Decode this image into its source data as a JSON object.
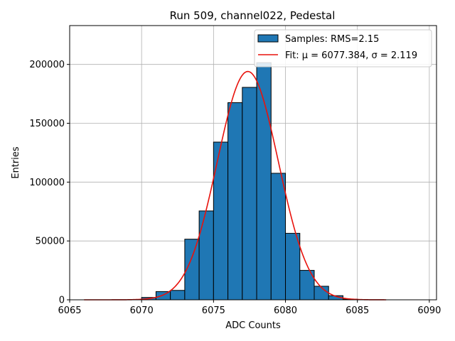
{
  "chart_data": {
    "type": "bar",
    "title": "Run 509, channel022, Pedestal",
    "xlabel": "ADC Counts",
    "ylabel": "Entries",
    "xlim": [
      6065,
      6090.5
    ],
    "ylim": [
      0,
      233000
    ],
    "grid": true,
    "legend_position": "top-right",
    "x_ticks": [
      6065,
      6070,
      6075,
      6080,
      6085,
      6090
    ],
    "y_ticks": [
      0,
      50000,
      100000,
      150000,
      200000
    ],
    "bin_width": 1,
    "bins": [
      {
        "x0": 6070,
        "value": 2000
      },
      {
        "x0": 6071,
        "value": 7000
      },
      {
        "x0": 6072,
        "value": 8000
      },
      {
        "x0": 6073,
        "value": 51500
      },
      {
        "x0": 6074,
        "value": 75500
      },
      {
        "x0": 6075,
        "value": 134000
      },
      {
        "x0": 6076,
        "value": 167500
      },
      {
        "x0": 6077,
        "value": 180500
      },
      {
        "x0": 6078,
        "value": 201500
      },
      {
        "x0": 6079,
        "value": 107500
      },
      {
        "x0": 6080,
        "value": 56500
      },
      {
        "x0": 6081,
        "value": 25000
      },
      {
        "x0": 6082,
        "value": 11500
      },
      {
        "x0": 6083,
        "value": 3500
      },
      {
        "x0": 6084,
        "value": 500
      }
    ],
    "fit": {
      "mu": 6077.384,
      "sigma": 2.119,
      "amplitude": 194000,
      "x_range": [
        6066,
        6087
      ]
    },
    "series": [
      {
        "name": "Samples: RMS=2.15",
        "color": "#1f77b4",
        "kind": "histogram"
      },
      {
        "name": "Fit: μ = 6077.384, σ = 2.119",
        "color": "#e8120c",
        "kind": "line"
      }
    ]
  }
}
